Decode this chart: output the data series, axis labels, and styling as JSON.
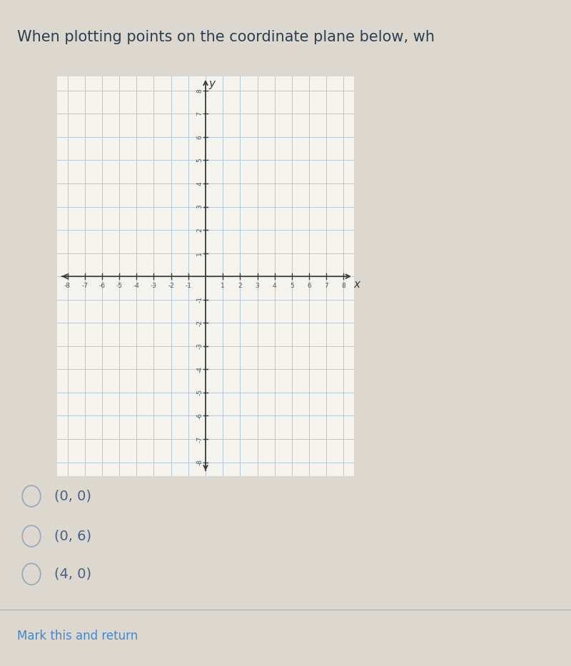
{
  "title_text": "When plotting points on the coordinate plane below, wh",
  "title_fontsize": 15,
  "title_color": "#2d3e50",
  "bg_color": "#dcd8d0",
  "grid_color": "#a0b4cc",
  "axis_color": "#3a3a3a",
  "tick_color": "#4a5a6a",
  "grid_box_bg": "#f5f3ee",
  "xmin": -8,
  "xmax": 8,
  "ymin": -8,
  "ymax": 8,
  "choices": [
    "(0, 0)",
    "(0, 6)",
    "(4, 0)"
  ],
  "choices_color": "#4a6080",
  "mark_return_text": "Mark this and return",
  "mark_return_color": "#4488cc",
  "circle_color": "#9aaabb",
  "separator_color": "#b0b0b0"
}
